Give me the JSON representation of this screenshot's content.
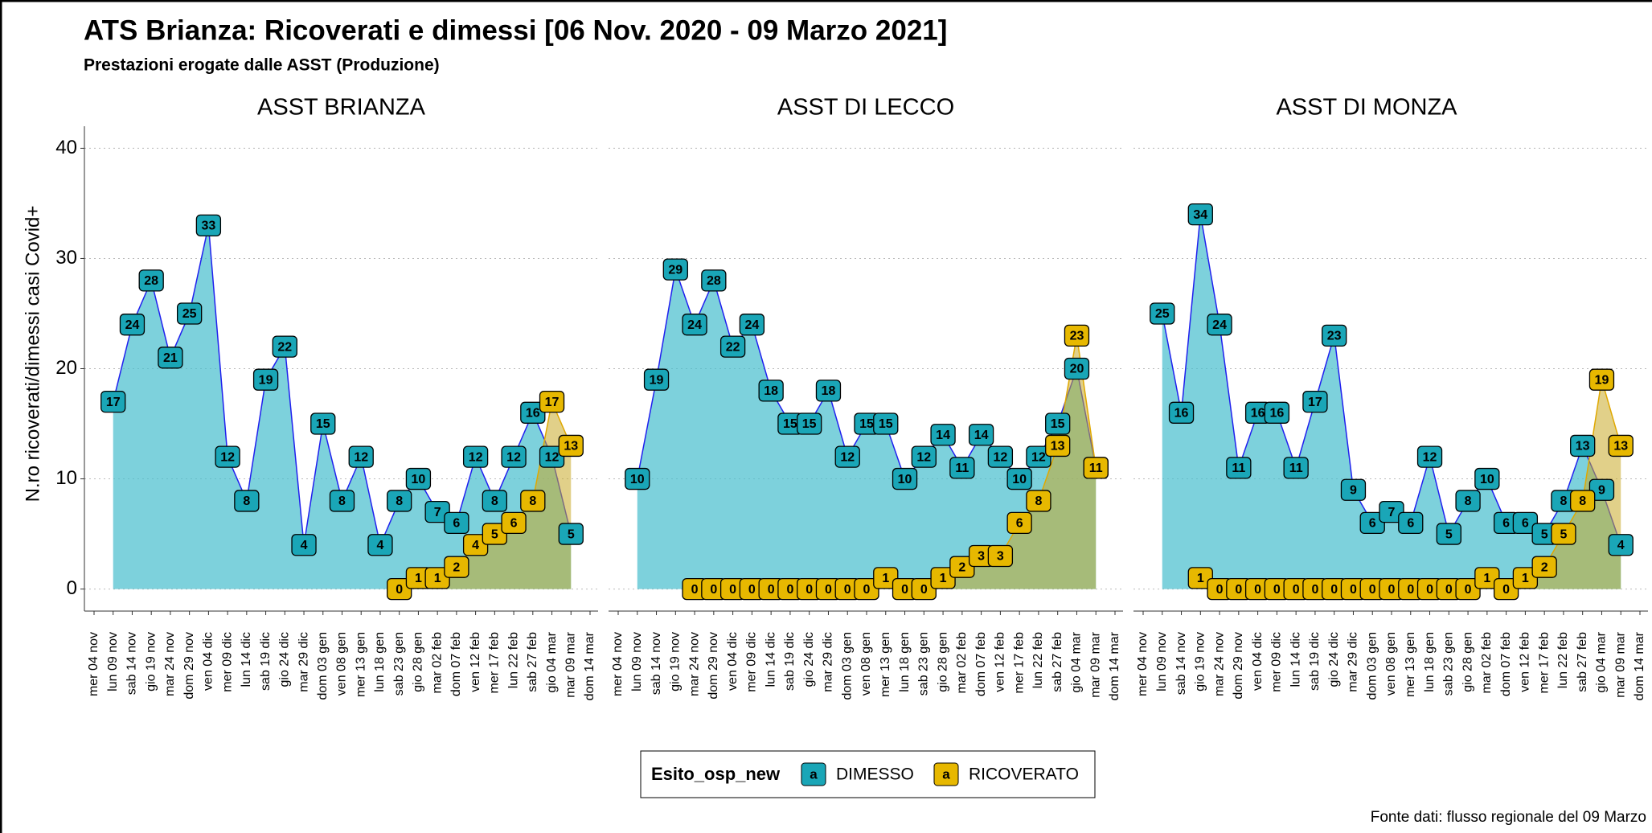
{
  "title": "ATS Brianza: Ricoverati e dimessi [06 Nov. 2020 - 09 Marzo 2021]",
  "subtitle": "Prestazioni erogate dalle ASST (Produzione)",
  "y_label": "N.ro ricoverati/dimessi casi Covid+",
  "legend_title": "Esito_osp_new",
  "legend_key_glyph": "a",
  "source": "Fonte dati: flusso regionale del 09 Marzo",
  "chart_data": [
    {
      "type": "area",
      "title": "ASST BRIANZA",
      "categories": [
        "mer 04 nov",
        "lun 09 nov",
        "sab 14 nov",
        "gio 19 nov",
        "mar 24 nov",
        "dom 29 nov",
        "ven 04 dic",
        "mer 09 dic",
        "lun 14 dic",
        "sab 19 dic",
        "gio 24 dic",
        "mar 29 dic",
        "dom 03 gen",
        "ven 08 gen",
        "mer 13 gen",
        "lun 18 gen",
        "sab 23 gen",
        "gio 28 gen",
        "mar 02 feb",
        "dom 07 feb",
        "ven 12 feb",
        "mer 17 feb",
        "lun 22 feb",
        "sab 27 feb",
        "gio 04 mar",
        "mar 09 mar",
        "dom 14 mar"
      ],
      "series": [
        {
          "name": "DIMESSO",
          "color": "#1aa6b7",
          "values": [
            null,
            17,
            24,
            28,
            21,
            25,
            33,
            12,
            8,
            19,
            22,
            4,
            15,
            8,
            12,
            4,
            8,
            10,
            7,
            6,
            12,
            8,
            12,
            16,
            12,
            5,
            null
          ]
        },
        {
          "name": "RICOVERATO",
          "color": "#e7b800",
          "values": [
            null,
            null,
            null,
            null,
            null,
            null,
            null,
            null,
            null,
            null,
            null,
            null,
            null,
            null,
            null,
            null,
            0,
            1,
            1,
            2,
            4,
            5,
            6,
            8,
            17,
            13,
            null
          ]
        }
      ],
      "ylim": [
        -2,
        42
      ],
      "yticks": [
        0,
        10,
        20,
        30,
        40
      ],
      "grid": true
    },
    {
      "type": "area",
      "title": "ASST DI LECCO",
      "categories": [
        "mer 04 nov",
        "lun 09 nov",
        "sab 14 nov",
        "gio 19 nov",
        "mar 24 nov",
        "dom 29 nov",
        "ven 04 dic",
        "mer 09 dic",
        "lun 14 dic",
        "sab 19 dic",
        "gio 24 dic",
        "mar 29 dic",
        "dom 03 gen",
        "ven 08 gen",
        "mer 13 gen",
        "lun 18 gen",
        "sab 23 gen",
        "gio 28 gen",
        "mar 02 feb",
        "dom 07 feb",
        "ven 12 feb",
        "mer 17 feb",
        "lun 22 feb",
        "sab 27 feb",
        "gio 04 mar",
        "mar 09 mar",
        "dom 14 mar"
      ],
      "series": [
        {
          "name": "DIMESSO",
          "color": "#1aa6b7",
          "values": [
            null,
            10,
            19,
            29,
            24,
            28,
            22,
            24,
            18,
            15,
            15,
            18,
            12,
            15,
            15,
            10,
            12,
            14,
            11,
            14,
            12,
            10,
            12,
            15,
            20,
            11,
            null
          ]
        },
        {
          "name": "RICOVERATO",
          "color": "#e7b800",
          "values": [
            null,
            null,
            null,
            null,
            0,
            0,
            0,
            0,
            0,
            0,
            0,
            0,
            0,
            0,
            1,
            0,
            0,
            1,
            2,
            3,
            3,
            6,
            8,
            13,
            23,
            11,
            null
          ]
        }
      ],
      "ylim": [
        -2,
        42
      ],
      "yticks": [
        0,
        10,
        20,
        30,
        40
      ],
      "grid": true
    },
    {
      "type": "area",
      "title": "ASST DI MONZA",
      "categories": [
        "mer 04 nov",
        "lun 09 nov",
        "sab 14 nov",
        "gio 19 nov",
        "mar 24 nov",
        "dom 29 nov",
        "ven 04 dic",
        "mer 09 dic",
        "lun 14 dic",
        "sab 19 dic",
        "gio 24 dic",
        "mar 29 dic",
        "dom 03 gen",
        "ven 08 gen",
        "mer 13 gen",
        "lun 18 gen",
        "sab 23 gen",
        "gio 28 gen",
        "mar 02 feb",
        "dom 07 feb",
        "ven 12 feb",
        "mer 17 feb",
        "lun 22 feb",
        "sab 27 feb",
        "gio 04 mar",
        "mar 09 mar",
        "dom 14 mar"
      ],
      "series": [
        {
          "name": "DIMESSO",
          "color": "#1aa6b7",
          "values": [
            null,
            25,
            16,
            34,
            24,
            11,
            16,
            16,
            11,
            17,
            23,
            9,
            6,
            7,
            6,
            12,
            5,
            8,
            10,
            6,
            6,
            5,
            8,
            13,
            9,
            4,
            null
          ]
        },
        {
          "name": "RICOVERATO",
          "color": "#e7b800",
          "values": [
            null,
            null,
            null,
            1,
            0,
            0,
            0,
            0,
            0,
            0,
            0,
            0,
            0,
            0,
            0,
            0,
            0,
            0,
            1,
            0,
            1,
            2,
            5,
            8,
            19,
            13,
            null
          ]
        }
      ],
      "ylim": [
        -2,
        42
      ],
      "yticks": [
        0,
        10,
        20,
        30,
        40
      ],
      "grid": true
    }
  ]
}
